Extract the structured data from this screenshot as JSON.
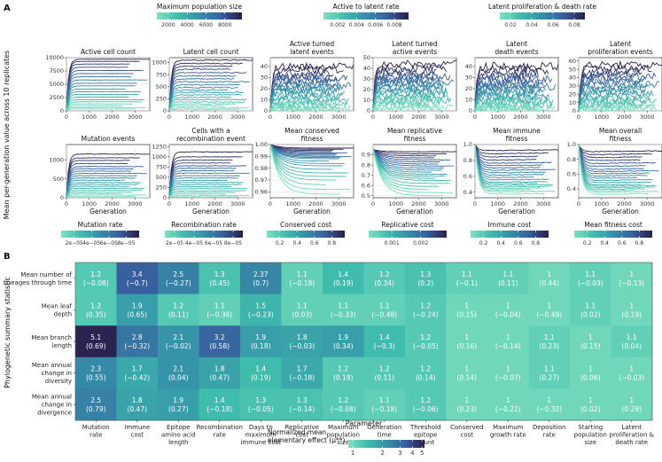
{
  "panel_a_label": "A",
  "panel_b_label": "B",
  "top_colorbars": [
    {
      "title": "Maximum population size",
      "ticks": [
        "2000",
        "4000",
        "6000",
        "8000"
      ],
      "tick_values": [
        2000,
        4000,
        6000,
        8000
      ],
      "range": [
        800,
        9800
      ]
    },
    {
      "title": "Active to latent rate",
      "ticks": [
        "0.002",
        "0.004",
        "0.006",
        "0.008"
      ],
      "tick_values": [
        0.002,
        0.004,
        0.006,
        0.008
      ],
      "range": [
        0.0005,
        0.0095
      ]
    },
    {
      "title": "Latent proliferation & death rate",
      "ticks": [
        "0.02",
        "0.04",
        "0.06",
        "0.08"
      ],
      "tick_values": [
        0.02,
        0.04,
        0.06,
        0.08
      ],
      "range": [
        0.01,
        0.09
      ]
    }
  ],
  "bottom_colorbars": [
    {
      "title": "Mutation rate",
      "ticks": [
        "2e−05",
        "4e−05",
        "6e−05",
        "8e−05"
      ],
      "tick_values": [
        2,
        4,
        6,
        8
      ],
      "range": [
        0.5,
        9.5
      ]
    },
    {
      "title": "Recombination rate",
      "ticks": [
        "2e−05",
        "4e−05",
        "6e−05",
        "8e−05"
      ],
      "tick_values": [
        2,
        4,
        6,
        8
      ],
      "range": [
        1,
        9
      ]
    },
    {
      "title": "Conserved cost",
      "ticks": [
        "0.2",
        "0.4",
        "0.6",
        "0.8"
      ],
      "tick_values": [
        0.2,
        0.4,
        0.6,
        0.8
      ],
      "range": [
        0.05,
        0.95
      ]
    },
    {
      "title": "Replicative cost",
      "ticks": [
        "0.001",
        "0.002"
      ],
      "tick_values": [
        0.001,
        0.002
      ],
      "range": [
        0.0002,
        0.0029
      ]
    },
    {
      "title": "Immune cost",
      "ticks": [
        "0.2",
        "0.4",
        "0.6",
        "0.8"
      ],
      "tick_values": [
        0.2,
        0.4,
        0.6,
        0.8
      ],
      "range": [
        0.05,
        0.95
      ]
    },
    {
      "title": "Mean fitness cost",
      "ticks": [
        "0.2",
        "0.4",
        "0.6",
        "0.8"
      ],
      "tick_values": [
        0.2,
        0.4,
        0.6,
        0.8
      ],
      "range": [
        0.05,
        0.95
      ]
    }
  ],
  "panel_a_ylabel": "Mean per-generation value across 10 replicates",
  "panel_b_ylabel": "Phylogenetic summary statistic",
  "chart_data": [
    {
      "type": "line",
      "title": "Active cell count",
      "xlabel": "",
      "ylim": [
        0,
        10000
      ],
      "yticks": [
        "0",
        "2500",
        "5000",
        "7500",
        "10000"
      ],
      "ytick_values": [
        0,
        2500,
        5000,
        7500,
        10000
      ],
      "xlim": [
        0,
        3650
      ],
      "xticks": [
        "0",
        "1000",
        "2000",
        "3000"
      ],
      "xtick_values": [
        0,
        1000,
        2000,
        3000
      ],
      "pattern": "plateau",
      "levels": [
        9700,
        9300,
        8800,
        8200,
        7600,
        7000,
        6400,
        5800,
        5200,
        4700,
        4100,
        3600,
        3100,
        2600,
        2100,
        1700,
        1300,
        900,
        600,
        350
      ],
      "noise": 0.004
    },
    {
      "type": "line",
      "title": "Latent cell count",
      "xlabel": "",
      "ylim": [
        0,
        1100
      ],
      "yticks": [
        "0",
        "250",
        "500",
        "750",
        "1000"
      ],
      "ytick_values": [
        0,
        250,
        500,
        750,
        1000
      ],
      "xlim": [
        0,
        3650
      ],
      "xticks": [
        "0",
        "1000",
        "2000",
        "3000"
      ],
      "xtick_values": [
        0,
        1000,
        2000,
        3000
      ],
      "pattern": "plateau",
      "levels": [
        1050,
        980,
        920,
        860,
        790,
        720,
        660,
        600,
        540,
        480,
        430,
        380,
        330,
        280,
        230,
        180,
        140,
        100,
        60,
        30
      ],
      "noise": 0.02
    },
    {
      "type": "line",
      "title": "Active turned\nlatent events",
      "xlabel": "",
      "ylim": [
        0,
        48
      ],
      "yticks": [
        "0",
        "10",
        "20",
        "30",
        "40"
      ],
      "ytick_values": [
        0,
        10,
        20,
        30,
        40
      ],
      "xlim": [
        0,
        3650
      ],
      "xticks": [
        "0",
        "1000",
        "2000",
        "3000"
      ],
      "xtick_values": [
        0,
        1000,
        2000,
        3000
      ],
      "pattern": "noisy",
      "levels": [
        40,
        37,
        34,
        31,
        29,
        27,
        25,
        23,
        21,
        19,
        17,
        15,
        13,
        11,
        9,
        7,
        5,
        3,
        2,
        1
      ],
      "noise": 0.07
    },
    {
      "type": "line",
      "title": "Latent turned\nactive events",
      "xlabel": "",
      "ylim": [
        0,
        50
      ],
      "yticks": [
        "0",
        "10",
        "20",
        "30",
        "40",
        "50"
      ],
      "ytick_values": [
        0,
        10,
        20,
        30,
        40,
        50
      ],
      "xlim": [
        0,
        3650
      ],
      "xticks": [
        "0",
        "1000",
        "2000",
        "3000"
      ],
      "xtick_values": [
        0,
        1000,
        2000,
        3000
      ],
      "pattern": "noisy",
      "levels": [
        44,
        40,
        37,
        34,
        32,
        30,
        28,
        26,
        24,
        22,
        20,
        18,
        16,
        14,
        12,
        10,
        8,
        6,
        4,
        2
      ],
      "noise": 0.07
    },
    {
      "type": "line",
      "title": "Latent\ndeath events",
      "xlabel": "",
      "ylim": [
        0,
        48
      ],
      "yticks": [
        "0",
        "10",
        "20",
        "30",
        "40"
      ],
      "ytick_values": [
        0,
        10,
        20,
        30,
        40
      ],
      "xlim": [
        0,
        3650
      ],
      "xticks": [
        "0",
        "1000",
        "2000",
        "3000"
      ],
      "xtick_values": [
        0,
        1000,
        2000,
        3000
      ],
      "pattern": "noisy",
      "levels": [
        40,
        37,
        34,
        31,
        28,
        26,
        24,
        22,
        20,
        18,
        16,
        14,
        12,
        10,
        8,
        6,
        5,
        3,
        2,
        1
      ],
      "noise": 0.08
    },
    {
      "type": "line",
      "title": "Latent\nproliferation events",
      "xlabel": "",
      "ylim": [
        0,
        64
      ],
      "yticks": [
        "0",
        "10",
        "20",
        "30",
        "40",
        "50",
        "60"
      ],
      "ytick_values": [
        0,
        10,
        20,
        30,
        40,
        50,
        60
      ],
      "xlim": [
        0,
        3650
      ],
      "xticks": [
        "0",
        "1000",
        "2000",
        "3000"
      ],
      "xtick_values": [
        0,
        1000,
        2000,
        3000
      ],
      "pattern": "noisy",
      "levels": [
        55,
        51,
        47,
        44,
        41,
        38,
        35,
        32,
        29,
        26,
        23,
        20,
        17,
        14,
        11,
        9,
        7,
        5,
        3,
        2
      ],
      "noise": 0.07
    },
    {
      "type": "line",
      "title": "Mutation events",
      "xlabel": "Generation",
      "ylim": [
        0,
        1400
      ],
      "yticks": [
        "0",
        "500",
        "1000"
      ],
      "ytick_values": [
        0,
        500,
        1000
      ],
      "xlim": [
        0,
        3650
      ],
      "xticks": [
        "0",
        "1000",
        "2000",
        "3000"
      ],
      "xtick_values": [
        0,
        1000,
        2000,
        3000
      ],
      "pattern": "plateau",
      "levels": [
        1150,
        1050,
        980,
        900,
        820,
        760,
        700,
        640,
        580,
        520,
        460,
        400,
        350,
        300,
        250,
        200,
        150,
        110,
        70,
        30
      ],
      "noise": 0.01
    },
    {
      "type": "line",
      "title": "Cells with a\nrecombination event",
      "xlabel": "Generation",
      "ylim": [
        0,
        1300
      ],
      "yticks": [
        "0",
        "250",
        "500",
        "750",
        "1000",
        "1250"
      ],
      "ytick_values": [
        0,
        250,
        500,
        750,
        1000,
        1250
      ],
      "xlim": [
        0,
        3650
      ],
      "xticks": [
        "0",
        "1000",
        "2000",
        "3000"
      ],
      "xtick_values": [
        0,
        1000,
        2000,
        3000
      ],
      "pattern": "plateau",
      "levels": [
        1120,
        1000,
        920,
        850,
        780,
        720,
        660,
        600,
        540,
        480,
        420,
        370,
        320,
        270,
        220,
        170,
        130,
        90,
        50,
        20
      ],
      "noise": 0.01
    },
    {
      "type": "line",
      "title": "Mean conserved\nfitness",
      "xlabel": "Generation",
      "ylim": [
        0.955,
        1.0
      ],
      "yticks": [
        "0.96",
        "0.97",
        "0.98",
        "0.99",
        "1.00"
      ],
      "ytick_values": [
        0.96,
        0.97,
        0.98,
        0.99,
        1.0
      ],
      "xlim": [
        0,
        3650
      ],
      "xticks": [
        "0",
        "1000",
        "2000",
        "3000"
      ],
      "xtick_values": [
        0,
        1000,
        2000,
        3000
      ],
      "pattern": "decline",
      "start": 1.0,
      "levels": [
        0.997,
        0.996,
        0.995,
        0.994,
        0.993,
        0.992,
        0.991,
        0.99,
        0.989,
        0.988,
        0.986,
        0.984,
        0.982,
        0.979,
        0.976,
        0.973,
        0.97,
        0.966,
        0.962,
        0.958
      ],
      "noise": 0.002
    },
    {
      "type": "line",
      "title": "Mean replicative\nfitness",
      "xlabel": "Generation",
      "ylim": [
        0.48,
        1.0
      ],
      "yticks": [
        "0.5",
        "0.6",
        "0.7",
        "0.8",
        "0.9"
      ],
      "ytick_values": [
        0.5,
        0.6,
        0.7,
        0.8,
        0.9
      ],
      "xlim": [
        0,
        3650
      ],
      "xticks": [
        "0",
        "1000",
        "2000",
        "3000"
      ],
      "xtick_values": [
        0,
        1000,
        2000,
        3000
      ],
      "pattern": "decline",
      "start": 0.95,
      "levels": [
        0.93,
        0.91,
        0.89,
        0.87,
        0.85,
        0.83,
        0.81,
        0.79,
        0.77,
        0.75,
        0.73,
        0.71,
        0.69,
        0.67,
        0.65,
        0.62,
        0.59,
        0.56,
        0.53,
        0.5
      ],
      "noise": 0.008
    },
    {
      "type": "line",
      "title": "Mean immune\nfitness",
      "xlabel": "Generation",
      "ylim": [
        0.33,
        1.0
      ],
      "yticks": [
        "0.4",
        "0.6",
        "0.8",
        "1.0"
      ],
      "ytick_values": [
        0.4,
        0.6,
        0.8,
        1.0
      ],
      "xlim": [
        0,
        3650
      ],
      "xticks": [
        "0",
        "1000",
        "2000",
        "3000"
      ],
      "xtick_values": [
        0,
        1000,
        2000,
        3000
      ],
      "pattern": "dip",
      "start": 1.0,
      "levels": [
        0.92,
        0.88,
        0.84,
        0.8,
        0.76,
        0.73,
        0.7,
        0.67,
        0.64,
        0.61,
        0.58,
        0.55,
        0.52,
        0.5,
        0.48,
        0.46,
        0.44,
        0.42,
        0.4,
        0.37
      ],
      "noise": 0.015
    },
    {
      "type": "line",
      "title": "Mean overall\nfitness",
      "xlabel": "Generation",
      "ylim": [
        0.28,
        1.0
      ],
      "yticks": [
        "0.4",
        "0.6",
        "0.8",
        "1.0"
      ],
      "ytick_values": [
        0.4,
        0.6,
        0.8,
        1.0
      ],
      "xlim": [
        0,
        3650
      ],
      "xticks": [
        "0",
        "1000",
        "2000",
        "3000"
      ],
      "xtick_values": [
        0,
        1000,
        2000,
        3000
      ],
      "pattern": "dip",
      "start": 1.0,
      "levels": [
        0.9,
        0.86,
        0.82,
        0.78,
        0.74,
        0.7,
        0.66,
        0.63,
        0.6,
        0.57,
        0.54,
        0.51,
        0.48,
        0.45,
        0.43,
        0.41,
        0.39,
        0.37,
        0.35,
        0.32
      ],
      "noise": 0.015
    },
    {
      "type": "heatmap",
      "rows": [
        "Mean number of\nlineages through time",
        "Mean leaf\ndepth",
        "Mean branch\nlength",
        "Mean annual\nchange in\ndiversity",
        "Mean annual\nchange in\ndivergence"
      ],
      "columns": [
        "Mutation\nrate",
        "Immune\ncost",
        "Epitope\namino acid\nlength",
        "Recombination\nrate",
        "Days to\nmaximum\nimmune cost",
        "Replicative\ncost",
        "Maximum\npopulation\nsize",
        "Generation\ntime",
        "Threshold\nepitope\ncount",
        "Conserved\ncost",
        "Maximum\ngrowth rate",
        "Deposition\nrate",
        "Starting\npopulation\nsize",
        "Latent\nproliferation &\ndeath rate"
      ],
      "values": [
        [
          1.2,
          3.4,
          2.5,
          1.3,
          2.37,
          1.1,
          1.4,
          1.2,
          1.3,
          1.1,
          1.1,
          1,
          1.1,
          1
        ],
        [
          1.2,
          1.9,
          1.2,
          1.1,
          1.5,
          1.1,
          1.1,
          1.1,
          1.2,
          1,
          1,
          1,
          1.1,
          1
        ],
        [
          5.1,
          2.8,
          2.1,
          3.2,
          1.9,
          1.8,
          1.9,
          1.4,
          1.2,
          1,
          1,
          1.1,
          1,
          1.1
        ],
        [
          2.3,
          1.7,
          2.1,
          1.8,
          1.4,
          1.7,
          1.2,
          1.2,
          1.2,
          1,
          1,
          1.1,
          1,
          1
        ],
        [
          2.5,
          1.8,
          1.9,
          1.4,
          1.3,
          1.3,
          1.2,
          1.1,
          1.2,
          1,
          1,
          1,
          1,
          1
        ]
      ],
      "labels_top": [
        [
          "1.2",
          "3.4",
          "2.5",
          "1.3",
          "2.37",
          "1.1",
          "1.4",
          "1.2",
          "1.3",
          "1.1",
          "1.1",
          "1",
          "1.1",
          "1"
        ],
        [
          "1.2",
          "1.9",
          "1.2",
          "1.1",
          "1.5",
          "1.1",
          "1.1",
          "1.1",
          "1.2",
          "1",
          "1",
          "1",
          "1.1",
          "1"
        ],
        [
          "5.1",
          "2.8",
          "2.1",
          "3.2",
          "1.9",
          "1.8",
          "1.9",
          "1.4",
          "1.2",
          "1",
          "1",
          "1.1",
          "1",
          "1.1"
        ],
        [
          "2.3",
          "1.7",
          "2.1",
          "1.8",
          "1.4",
          "1.7",
          "1.2",
          "1.2",
          "1.2",
          "1",
          "1",
          "1.1",
          "1",
          "1"
        ],
        [
          "2.5",
          "1.8",
          "1.9",
          "1.4",
          "1.3",
          "1.3",
          "1.2",
          "1.1",
          "1.2",
          "1",
          "1",
          "1",
          "1",
          "1"
        ]
      ],
      "labels_sub": [
        [
          "(−0.08)",
          "(−0.7)",
          "(−0.27)",
          "(0.45)",
          "(0.7)",
          "(−0.18)",
          "(0.19)",
          "(0.34)",
          "(0.2)",
          "(−0.1)",
          "(0.11)",
          "(0.44)",
          "(−0.03)",
          "(−0.13)"
        ],
        [
          "(0.35)",
          "(0.65)",
          "(0.11)",
          "(−0.36)",
          "(−0.23)",
          "(0.03)",
          "(−0.33)",
          "(−0.48)",
          "(−0.24)",
          "(0.15)",
          "(−0.04)",
          "(−0.49)",
          "(0.02)",
          "(0.19)"
        ],
        [
          "(0.69)",
          "(−0.32)",
          "(−0.02)",
          "(0.58)",
          "(0.18)",
          "(−0.03)",
          "(0.34)",
          "(−0.3)",
          "(−0.05)",
          "(0.16)",
          "(−0.14)",
          "(0.23)",
          "(0.15)",
          "(0.04)"
        ],
        [
          "(0.55)",
          "(−0.42)",
          "(0.04)",
          "(0.47)",
          "(0.19)",
          "(−0.18)",
          "(0.18)",
          "(0.11)",
          "(0.14)",
          "(0.14)",
          "(−0.07)",
          "(0.27)",
          "(0.06)",
          "(−0.03)"
        ],
        [
          "(0.79)",
          "(0.47)",
          "(0.27)",
          "(−0.18)",
          "(−0.05)",
          "(−0.14)",
          "(−0.08)",
          "(−0.18)",
          "(−0.06)",
          "(0.23)",
          "(−0.22)",
          "(−0.32)",
          "(0.02)",
          "(0.28)"
        ]
      ],
      "xlabel": "Parameter",
      "ylabel": "Phylogenetic summary statistic",
      "legend_title": "Normalized mean\nelementary effect (μ**)",
      "legend_ticks": [
        "1",
        "2",
        "3",
        "4",
        "5"
      ],
      "legend_tick_values": [
        1,
        2,
        3,
        4,
        5
      ],
      "legend_range": [
        0.9,
        5.3
      ]
    }
  ]
}
